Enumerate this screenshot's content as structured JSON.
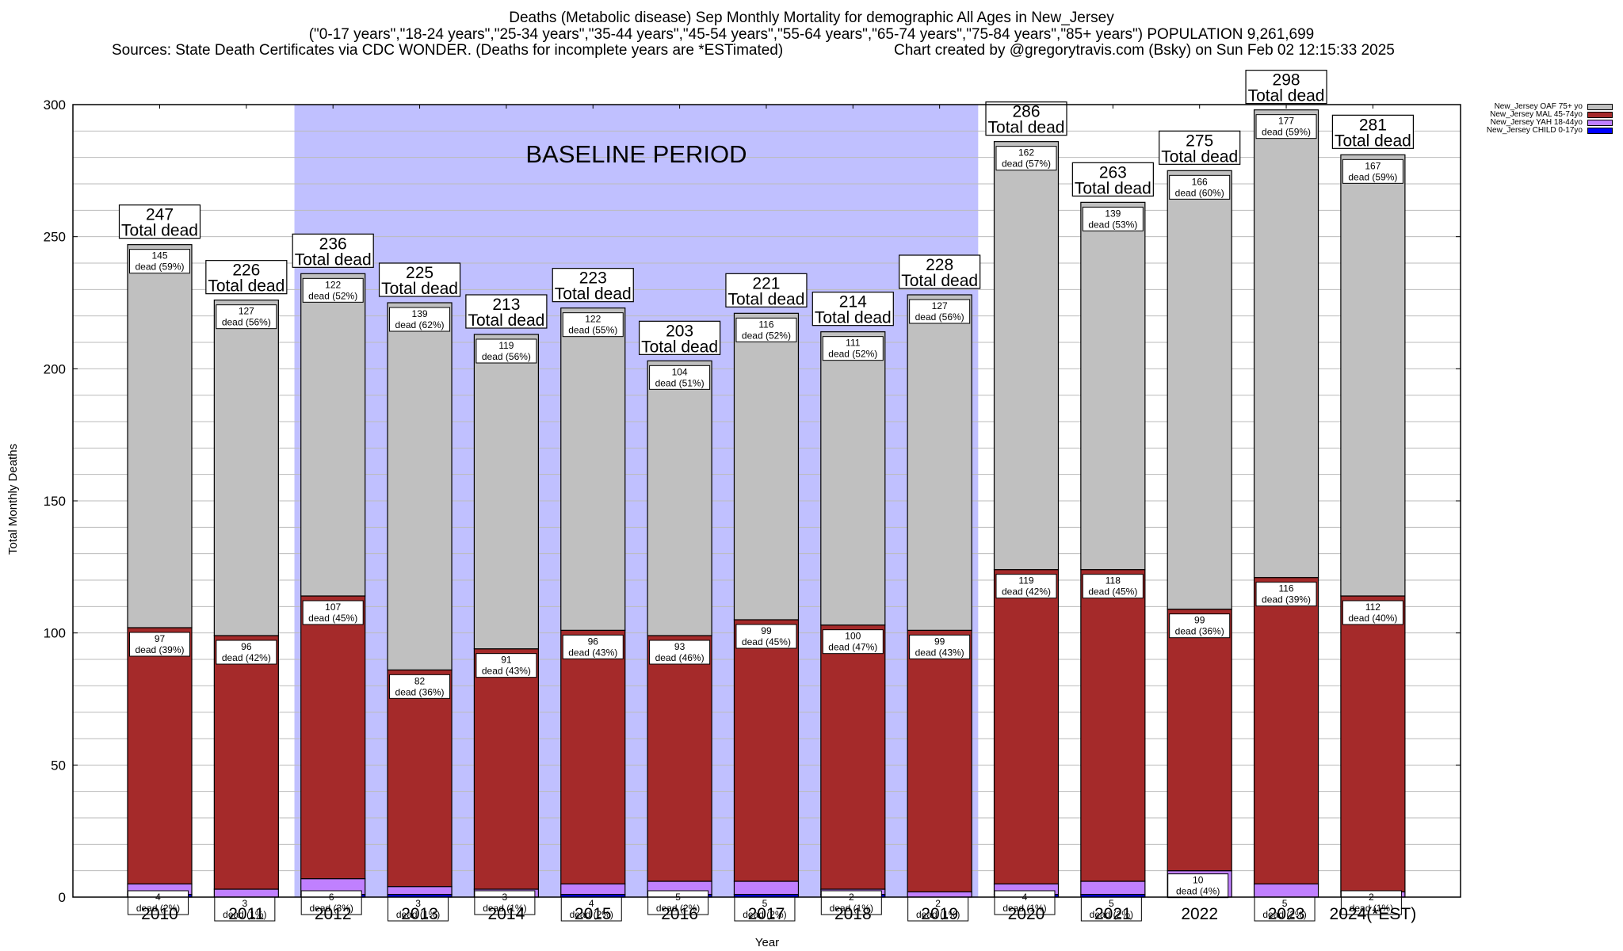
{
  "header": {
    "title": "Deaths (Metabolic disease) Sep Monthly Mortality for demographic All Ages in New_Jersey",
    "subtitle": "(\"0-17 years\",\"18-24 years\",\"25-34 years\",\"35-44 years\",\"45-54 years\",\"55-64 years\",\"65-74 years\",\"75-84 years\",\"85+ years\") POPULATION 9,261,699",
    "sources": "Sources: State Death Certificates via CDC WONDER. (Deaths for incomplete years are *ESTimated)",
    "credit": "Chart created by @gregorytravis.com (Bsky) on Sun Feb 02 12:15:33 2025"
  },
  "chart_data": {
    "type": "bar",
    "stacked": true,
    "title": "Deaths (Metabolic disease) Sep Monthly Mortality for demographic All Ages in New_Jersey",
    "xlabel": "Year",
    "ylabel": "Total Monthly Deaths",
    "ylim": [
      0,
      300
    ],
    "yticks": [
      0,
      50,
      100,
      150,
      200,
      250,
      300
    ],
    "grid": true,
    "legend_position": "top-right",
    "categories": [
      "2010",
      "2011",
      "2012",
      "2013",
      "2014",
      "2015",
      "2016",
      "2017",
      "2018",
      "2019",
      "2020",
      "2021",
      "2022",
      "2023",
      "2024(*EST)"
    ],
    "series": [
      {
        "name": "New_Jersey CHILD 0-17yo",
        "color": "#0000ff",
        "values": [
          1,
          0,
          1,
          1,
          0,
          1,
          1,
          1,
          1,
          0,
          1,
          1,
          0,
          0,
          0
        ]
      },
      {
        "name": "New_Jersey YAH 18-44yo",
        "color": "#c080ff",
        "values": [
          4,
          3,
          6,
          3,
          3,
          4,
          5,
          5,
          2,
          2,
          4,
          5,
          10,
          5,
          2
        ],
        "pct": [
          "2%",
          "1%",
          "3%",
          "1%",
          "1%",
          "2%",
          "2%",
          "2%",
          "1%",
          "1%",
          "1%",
          "2%",
          "4%",
          "2%",
          "1%"
        ]
      },
      {
        "name": "New_Jersey MAL 45-74yo",
        "color": "#a52a2a",
        "values": [
          97,
          96,
          107,
          82,
          91,
          96,
          93,
          99,
          100,
          99,
          119,
          118,
          99,
          116,
          112
        ],
        "pct": [
          "39%",
          "42%",
          "45%",
          "36%",
          "43%",
          "43%",
          "46%",
          "45%",
          "47%",
          "43%",
          "42%",
          "45%",
          "36%",
          "39%",
          "40%"
        ]
      },
      {
        "name": "New_Jersey OAF 75+ yo",
        "color": "#c0c0c0",
        "values": [
          145,
          127,
          122,
          139,
          119,
          122,
          104,
          116,
          111,
          127,
          162,
          139,
          166,
          177,
          167
        ],
        "pct": [
          "59%",
          "56%",
          "52%",
          "62%",
          "56%",
          "55%",
          "51%",
          "52%",
          "52%",
          "56%",
          "57%",
          "53%",
          "60%",
          "59%",
          "59%"
        ]
      }
    ],
    "totals": [
      247,
      226,
      236,
      225,
      213,
      223,
      203,
      221,
      214,
      228,
      286,
      263,
      275,
      298,
      281
    ],
    "total_label_suffix": "Total dead",
    "segment_label_word": "dead",
    "annotation": {
      "text": "BASELINE PERIOD",
      "range": [
        "2012",
        "2019"
      ],
      "color": "#c0c0ff"
    }
  },
  "legend": [
    {
      "label": "New_Jersey OAF 75+ yo",
      "color": "#c0c0c0"
    },
    {
      "label": "New_Jersey MAL 45-74yo",
      "color": "#a52a2a"
    },
    {
      "label": "New_Jersey YAH 18-44yo",
      "color": "#c080ff"
    },
    {
      "label": "New_Jersey CHILD 0-17yo",
      "color": "#0000ff"
    }
  ]
}
